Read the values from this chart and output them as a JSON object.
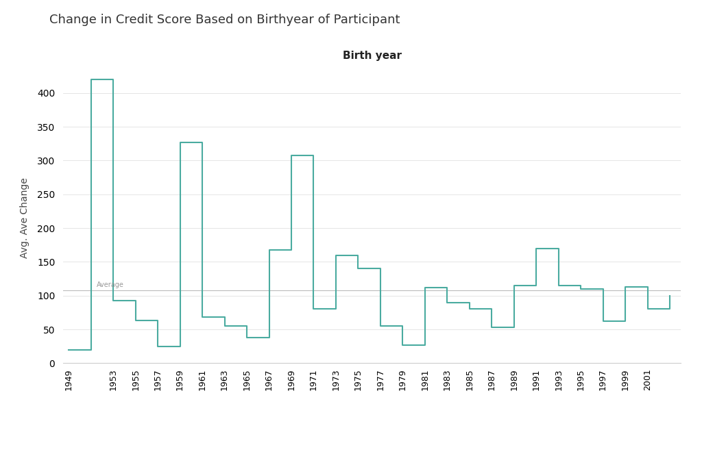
{
  "title": "Change in Credit Score Based on Birthyear of Participant",
  "xlabel": "Birth year",
  "ylabel": "Avg. Ave Change",
  "line_color": "#4aaba0",
  "average_line_value": 108,
  "average_label": "Average",
  "background_color": "#ffffff",
  "plot_bg_color": "#ffffff",
  "x_values": [
    1949,
    1951,
    1953,
    1955,
    1957,
    1959,
    1961,
    1963,
    1965,
    1967,
    1969,
    1971,
    1973,
    1975,
    1977,
    1979,
    1981,
    1983,
    1985,
    1987,
    1989,
    1991,
    1993,
    1995,
    1997,
    1999,
    2001,
    2003
  ],
  "y_values": [
    20,
    420,
    93,
    63,
    25,
    327,
    68,
    55,
    38,
    168,
    307,
    80,
    160,
    140,
    55,
    27,
    112,
    90,
    80,
    53,
    115,
    170,
    115,
    110,
    62,
    113,
    80,
    100
  ],
  "xtick_positions": [
    1949,
    1953,
    1955,
    1957,
    1959,
    1961,
    1963,
    1965,
    1967,
    1969,
    1971,
    1973,
    1975,
    1977,
    1979,
    1981,
    1983,
    1985,
    1987,
    1989,
    1991,
    1993,
    1995,
    1997,
    1999,
    2001
  ],
  "ylim": [
    0,
    430
  ],
  "yticks": [
    0,
    50,
    100,
    150,
    200,
    250,
    300,
    350,
    400
  ],
  "figsize": [
    10.24,
    6.63
  ],
  "dpi": 100
}
